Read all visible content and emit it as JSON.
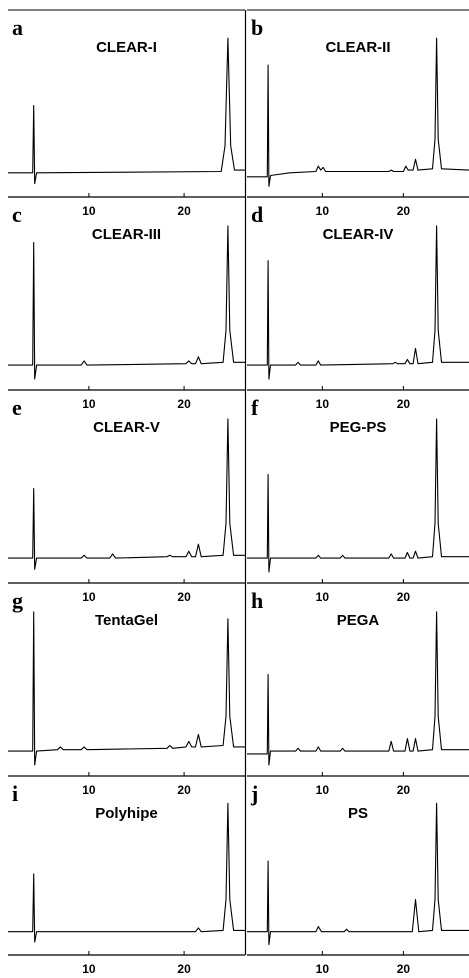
{
  "chart_data": [
    {
      "type": "line",
      "panel": "a",
      "title": "CLEAR-I",
      "color": "#000000",
      "xlim": [
        1.5,
        26.4
      ],
      "ylim": [
        -15,
        115
      ],
      "xticks": [
        10,
        20
      ],
      "x": [
        1.5,
        4.1,
        4.2,
        4.3,
        4.5,
        23.9,
        24.3,
        24.6,
        24.9,
        25.3,
        26.4
      ],
      "values": [
        0,
        0,
        50,
        -8,
        0,
        1,
        20,
        100,
        20,
        2,
        2
      ]
    },
    {
      "type": "line",
      "panel": "b",
      "title": "CLEAR-II",
      "color": "#000000",
      "xlim": [
        0.7,
        28.1
      ],
      "ylim": [
        -15,
        115
      ],
      "xticks": [
        10,
        20
      ],
      "x": [
        0.7,
        3.2,
        3.3,
        3.4,
        3.6,
        6,
        9.2,
        9.5,
        9.8,
        10.1,
        10.4,
        18.2,
        18.5,
        18.8,
        20,
        20.3,
        20.6,
        21.2,
        21.5,
        21.8,
        23.6,
        23.9,
        24.1,
        24.3,
        24.7,
        28.1
      ],
      "values": [
        -3,
        -3,
        80,
        -10,
        -2,
        0,
        1,
        5,
        2,
        4,
        1,
        1,
        2,
        1,
        1,
        5,
        2,
        2,
        10,
        2,
        3,
        25,
        100,
        25,
        3,
        2
      ]
    },
    {
      "type": "line",
      "panel": "c",
      "title": "CLEAR-III",
      "color": "#000000",
      "xlim": [
        1.5,
        26.4
      ],
      "ylim": [
        -15,
        115
      ],
      "xticks": [
        10,
        20
      ],
      "x": [
        1.5,
        4.1,
        4.2,
        4.3,
        4.5,
        9.2,
        9.5,
        9.8,
        20.2,
        20.5,
        20.8,
        21.2,
        21.5,
        21.8,
        24.1,
        24.4,
        24.6,
        24.8,
        25.2,
        26.4
      ],
      "values": [
        0,
        0,
        88,
        -10,
        0,
        0,
        3,
        0,
        1,
        3,
        1,
        1,
        6,
        1,
        2,
        25,
        100,
        25,
        2,
        2
      ]
    },
    {
      "type": "line",
      "panel": "d",
      "title": "CLEAR-IV",
      "color": "#000000",
      "xlim": [
        0.7,
        28.1
      ],
      "ylim": [
        -15,
        115
      ],
      "xticks": [
        10,
        20
      ],
      "x": [
        0.7,
        3.2,
        3.3,
        3.4,
        3.6,
        6.7,
        7,
        7.3,
        9.2,
        9.5,
        9.8,
        18.7,
        19,
        19.3,
        20.2,
        20.5,
        20.8,
        21.2,
        21.5,
        21.8,
        23.6,
        23.9,
        24.1,
        24.3,
        24.7,
        28.1
      ],
      "values": [
        0,
        0,
        75,
        -10,
        0,
        0,
        2,
        0,
        0,
        3,
        0,
        1,
        2,
        1,
        1,
        4,
        1,
        1,
        12,
        1,
        2,
        25,
        100,
        25,
        2,
        2
      ]
    },
    {
      "type": "line",
      "panel": "e",
      "title": "CLEAR-V",
      "color": "#000000",
      "xlim": [
        1.5,
        26.4
      ],
      "ylim": [
        -15,
        115
      ],
      "xticks": [
        10,
        20
      ],
      "x": [
        1.5,
        4.1,
        4.2,
        4.3,
        4.5,
        9.2,
        9.5,
        9.8,
        12.2,
        12.5,
        12.8,
        18.2,
        18.5,
        18.8,
        20.2,
        20.5,
        20.8,
        21.2,
        21.5,
        21.8,
        24.1,
        24.4,
        24.6,
        24.8,
        25.2,
        26.4
      ],
      "values": [
        0,
        0,
        50,
        -8,
        0,
        0,
        2,
        0,
        0,
        3,
        0,
        1,
        2,
        1,
        1,
        5,
        1,
        1,
        10,
        1,
        2,
        25,
        100,
        25,
        2,
        2
      ]
    },
    {
      "type": "line",
      "panel": "f",
      "title": "PEG-PS",
      "color": "#000000",
      "xlim": [
        0.7,
        28.1
      ],
      "ylim": [
        -15,
        115
      ],
      "xticks": [
        10,
        20
      ],
      "x": [
        0.7,
        3.2,
        3.3,
        3.4,
        3.6,
        9.2,
        9.5,
        9.8,
        12.2,
        12.5,
        12.8,
        18.2,
        18.5,
        18.8,
        20.2,
        20.5,
        20.8,
        21.2,
        21.5,
        21.8,
        23.6,
        23.9,
        24.1,
        24.3,
        24.7,
        28.1
      ],
      "values": [
        0,
        0,
        60,
        -10,
        0,
        0,
        2,
        0,
        0,
        2,
        0,
        0,
        3,
        0,
        0,
        4,
        0,
        0,
        5,
        0,
        1,
        25,
        100,
        25,
        1,
        1
      ]
    },
    {
      "type": "line",
      "panel": "g",
      "title": "TentaGel",
      "color": "#000000",
      "xlim": [
        1.5,
        26.4
      ],
      "ylim": [
        -15,
        115
      ],
      "xticks": [
        10,
        20
      ],
      "x": [
        1.5,
        4.1,
        4.2,
        4.3,
        4.5,
        6.7,
        7,
        7.3,
        9.2,
        9.5,
        9.8,
        18.2,
        18.5,
        18.8,
        20.2,
        20.5,
        20.8,
        21.2,
        21.5,
        21.8,
        24.1,
        24.4,
        24.6,
        24.8,
        25.2,
        26.4
      ],
      "values": [
        0,
        0,
        100,
        -10,
        0,
        1,
        3,
        1,
        1,
        3,
        1,
        2,
        4,
        2,
        3,
        7,
        3,
        3,
        12,
        3,
        4,
        25,
        95,
        25,
        3,
        3
      ]
    },
    {
      "type": "line",
      "panel": "h",
      "title": "PEGA",
      "color": "#000000",
      "xlim": [
        0.7,
        28.1
      ],
      "ylim": [
        -15,
        115
      ],
      "xticks": [
        10,
        20
      ],
      "x": [
        0.7,
        3.2,
        3.3,
        3.4,
        3.6,
        6.7,
        7,
        7.3,
        9.2,
        9.5,
        9.8,
        12.2,
        12.5,
        12.8,
        18.2,
        18.5,
        18.8,
        20.2,
        20.5,
        20.8,
        21.2,
        21.5,
        21.8,
        23.6,
        23.9,
        24.1,
        24.3,
        24.7,
        28.1
      ],
      "values": [
        -2,
        -2,
        55,
        -10,
        0,
        0,
        2,
        0,
        0,
        3,
        0,
        0,
        2,
        0,
        0,
        7,
        0,
        0,
        9,
        0,
        0,
        9,
        0,
        1,
        25,
        100,
        25,
        1,
        1
      ]
    },
    {
      "type": "line",
      "panel": "i",
      "title": "Polyhipe",
      "color": "#000000",
      "xlim": [
        1.5,
        26.4
      ],
      "ylim": [
        -15,
        115
      ],
      "xticks": [
        10,
        20
      ],
      "x": [
        1.5,
        4.1,
        4.2,
        4.3,
        4.5,
        21.2,
        21.5,
        21.8,
        24.1,
        24.4,
        24.6,
        24.8,
        25.2,
        26.4
      ],
      "values": [
        0,
        0,
        45,
        -8,
        0,
        0,
        3,
        0,
        1,
        25,
        100,
        25,
        1,
        1
      ]
    },
    {
      "type": "line",
      "panel": "j",
      "title": "PS",
      "color": "#000000",
      "xlim": [
        0.7,
        28.1
      ],
      "ylim": [
        -15,
        115
      ],
      "xticks": [
        10,
        20
      ],
      "x": [
        0.7,
        3.2,
        3.3,
        3.4,
        3.6,
        9.2,
        9.5,
        9.9,
        12.7,
        13,
        13.3,
        21.1,
        21.5,
        21.9,
        23.6,
        23.9,
        24.1,
        24.3,
        24.7,
        28.1
      ],
      "values": [
        0,
        0,
        55,
        -10,
        0,
        0,
        4,
        0,
        0,
        2,
        0,
        0,
        25,
        0,
        1,
        25,
        100,
        25,
        1,
        1
      ]
    }
  ]
}
